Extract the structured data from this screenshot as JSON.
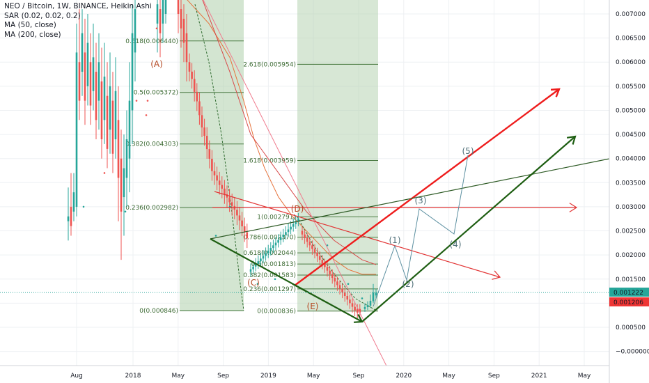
{
  "header": {
    "title": "NEO / Bitcoin, 1W, BINANCE, Heikin Ashi",
    "indicators": [
      "SAR (0.02, 0.02, 0.2)",
      "MA (50, close)",
      "MA (200, close)"
    ]
  },
  "colors": {
    "up": "#26a69a",
    "down": "#ef5350",
    "fib_zone": "#b6d3b3",
    "fib_line": "#4a7a42",
    "fib_text": "#3d6b34",
    "ma50": "#e6733c",
    "ma200": "#d84a4a",
    "red_arrow": "#ee1c1c",
    "green_arrow": "#1e5e12",
    "wave_proj": "#5b8fa0",
    "price_bg": "#26a69a",
    "price_bg2": "#ef3535",
    "axis_text": "#131722",
    "grid": "#eef0f3"
  },
  "price_axis": {
    "ticks": [
      "0.007000",
      "0.006500",
      "0.006000",
      "0.005500",
      "0.005000",
      "0.004500",
      "0.004000",
      "0.003500",
      "0.003000",
      "0.002500",
      "0.002000",
      "0.001500",
      "0.001000",
      "0.000500",
      "−0.000000"
    ],
    "last_price": "0.001222",
    "prev_price": "0.001206"
  },
  "time_axis": {
    "ticks": [
      "Aug",
      "2018",
      "May",
      "Sep",
      "2019",
      "May",
      "Sep",
      "2020",
      "May",
      "Sep",
      "2021",
      "May"
    ]
  },
  "chart_data": {
    "type": "candlestick",
    "title": "NEO / Bitcoin, 1W, BINANCE, Heikin Ashi",
    "ylim": [
      -0.0003,
      0.00735
    ],
    "x_range": [
      "2017-06-01",
      "2021-07-01"
    ],
    "fib_retracement_1": {
      "levels": [
        {
          "label": "0.618(0.006440)",
          "value": 0.00644
        },
        {
          "label": "0.5(0.005372)",
          "value": 0.005372
        },
        {
          "label": "0.382(0.004303)",
          "value": 0.004303
        },
        {
          "label": "0.236(0.002982)",
          "value": 0.002982
        },
        {
          "label": "0(0.000846)",
          "value": 0.000846
        }
      ]
    },
    "fib_extension_2": {
      "levels": [
        {
          "label": "2.618(0.005954)",
          "value": 0.005954
        },
        {
          "label": "1.618(0.003959)",
          "value": 0.003959
        },
        {
          "label": "1(0.002791)",
          "value": 0.002791
        },
        {
          "label": "0.786(0.002370)",
          "value": 0.00237
        },
        {
          "label": "0.618(0.002044)",
          "value": 0.002044
        },
        {
          "label": "0.5(0.001813)",
          "value": 0.001813
        },
        {
          "label": "0.382(0.001583)",
          "value": 0.001583
        },
        {
          "label": "0.236(0.001297)",
          "value": 0.001297
        },
        {
          "label": "0(0.000836)",
          "value": 0.000836
        }
      ]
    },
    "wave_labels": [
      "(A)",
      "(C)",
      "(D)",
      "(E)"
    ],
    "projection_labels": [
      "(1)",
      "(2)",
      "(3)",
      "(4)",
      "(5)"
    ]
  }
}
